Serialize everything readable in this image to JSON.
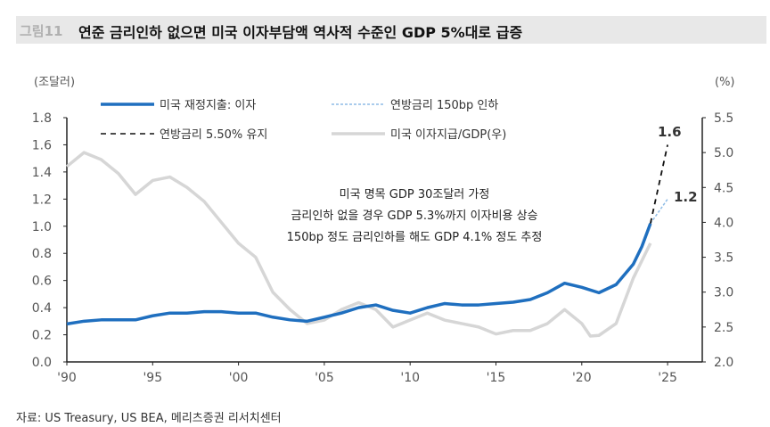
{
  "header": {
    "figure_label": "그림11",
    "title": "연준 금리인하 없으면 미국 이자부담액 역사적 수준인 GDP 5%대로 급증"
  },
  "source": "자료: US Treasury, US BEA, 메리츠증권 리서치센터",
  "chart_data": {
    "type": "line",
    "ylabel_left": "(조달러)",
    "ylabel_right": "(%)",
    "ylim_left": [
      0,
      1.8
    ],
    "ylim_right": [
      2.0,
      5.5
    ],
    "yticks_left": [
      "0.0",
      "0.2",
      "0.4",
      "0.6",
      "0.8",
      "1.0",
      "1.2",
      "1.4",
      "1.6",
      "1.8"
    ],
    "yticks_right": [
      "2.0",
      "2.5",
      "3.0",
      "3.5",
      "4.0",
      "4.5",
      "5.0",
      "5.5"
    ],
    "xticks": [
      "'90",
      "'95",
      "'00",
      "'05",
      "'10",
      "'15",
      "'20",
      "'25"
    ],
    "xlim": [
      1990,
      2027
    ],
    "legend_position": "top-left",
    "series": [
      {
        "name": "미국 재정지출: 이자",
        "axis": "left",
        "color": "#1f6fbf",
        "style": "solid",
        "x": [
          1990,
          1991,
          1992,
          1993,
          1994,
          1995,
          1996,
          1997,
          1998,
          1999,
          2000,
          2001,
          2002,
          2003,
          2004,
          2005,
          2006,
          2007,
          2008,
          2009,
          2010,
          2011,
          2012,
          2013,
          2014,
          2015,
          2016,
          2017,
          2018,
          2019,
          2020,
          2021,
          2022,
          2023,
          2023.5,
          2024
        ],
        "y": [
          0.28,
          0.3,
          0.31,
          0.31,
          0.31,
          0.34,
          0.36,
          0.36,
          0.37,
          0.37,
          0.36,
          0.36,
          0.33,
          0.31,
          0.3,
          0.33,
          0.36,
          0.4,
          0.42,
          0.38,
          0.36,
          0.4,
          0.43,
          0.42,
          0.42,
          0.43,
          0.44,
          0.46,
          0.51,
          0.58,
          0.55,
          0.51,
          0.57,
          0.72,
          0.85,
          1.02
        ]
      },
      {
        "name": "연방금리 150bp 인하",
        "axis": "left",
        "color": "#8dbbe6",
        "style": "dotted",
        "x": [
          2024,
          2025
        ],
        "y": [
          1.02,
          1.2
        ]
      },
      {
        "name": "연방금리 5.50% 유지",
        "axis": "left",
        "color": "#111111",
        "style": "dashed",
        "x": [
          2024,
          2025
        ],
        "y": [
          1.02,
          1.6
        ]
      },
      {
        "name": "미국 이자지급/GDP(우)",
        "axis": "right",
        "color": "#d6d6d6",
        "style": "solid",
        "x": [
          1990,
          1991,
          1992,
          1993,
          1994,
          1995,
          1996,
          1997,
          1998,
          1999,
          2000,
          2001,
          2002,
          2003,
          2004,
          2005,
          2006,
          2007,
          2008,
          2009,
          2010,
          2011,
          2012,
          2013,
          2014,
          2015,
          2016,
          2017,
          2018,
          2019,
          2020,
          2020.5,
          2021,
          2022,
          2023,
          2024
        ],
        "y": [
          4.8,
          5.0,
          4.9,
          4.7,
          4.4,
          4.6,
          4.65,
          4.5,
          4.3,
          4.0,
          3.7,
          3.5,
          3.0,
          2.75,
          2.55,
          2.6,
          2.75,
          2.85,
          2.75,
          2.5,
          2.6,
          2.7,
          2.6,
          2.55,
          2.5,
          2.4,
          2.45,
          2.45,
          2.55,
          2.75,
          2.55,
          2.37,
          2.38,
          2.55,
          3.2,
          3.7
        ]
      }
    ],
    "end_labels": [
      "1.6",
      "1.2"
    ],
    "annotation": [
      "미국 명목 GDP 30조달러 가정",
      "금리인하 없을 경우 GDP  5.3%까지 이자비용  상승",
      "150bp  정도 금리인하를  해도 GDP  4.1%  정도 추정"
    ]
  }
}
